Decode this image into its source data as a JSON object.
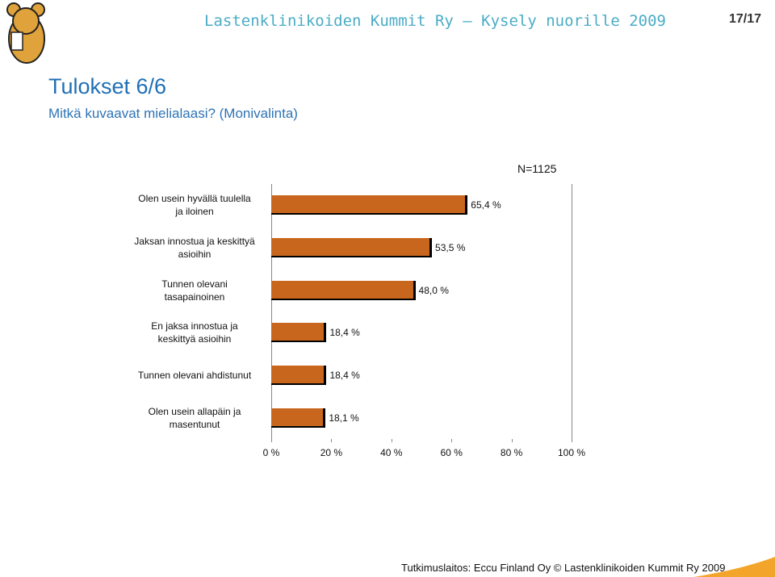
{
  "header": {
    "org": "Lastenklinikoiden Kummit Ry – Kysely nuorille 2009",
    "page": "17/17"
  },
  "footer": "Tutkimuslaitos: Eccu Finland Oy © Lastenklinikoiden Kummit Ry 2009",
  "chart_data": {
    "type": "bar",
    "orientation": "horizontal",
    "title": "Tulokset 6/6",
    "subtitle": "Mitkä kuvaavat mielialaasi? (Monivalinta)",
    "annotation": "N=1125",
    "categories": [
      "Olen usein hyvällä tuulella ja iloinen",
      "Jaksan innostua ja keskittyä asioihin",
      "Tunnen olevani tasapainoinen",
      "En jaksa innostua ja keskittyä asioihin",
      "Tunnen olevani ahdistunut",
      "Olen usein allapäin ja masentunut"
    ],
    "values": [
      65.4,
      53.5,
      48.0,
      18.4,
      18.4,
      18.1
    ],
    "value_labels": [
      "65,4 %",
      "53,5 %",
      "48,0 %",
      "18,4 %",
      "18,4 %",
      "18,1 %"
    ],
    "color": "#c8661e",
    "xlim": [
      0,
      100
    ],
    "xticks": [
      {
        "value": 0,
        "label": "0 %"
      },
      {
        "value": 20,
        "label": "20 %"
      },
      {
        "value": 40,
        "label": "40 %"
      },
      {
        "value": 60,
        "label": "60 %"
      },
      {
        "value": 80,
        "label": "80 %"
      },
      {
        "value": 100,
        "label": "100 %"
      }
    ]
  }
}
